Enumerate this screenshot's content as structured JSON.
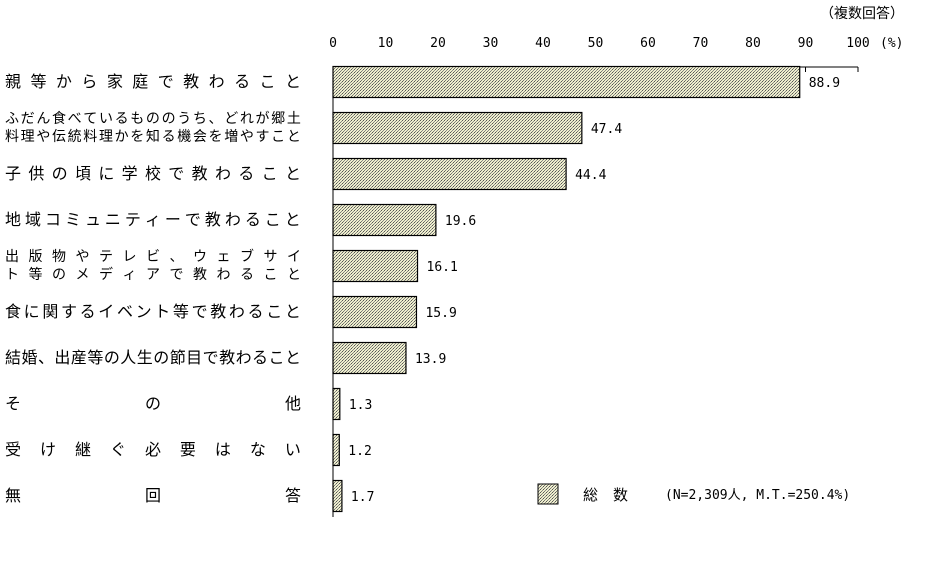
{
  "chart_data": {
    "type": "bar",
    "orientation": "horizontal",
    "note": "（複数回答）",
    "unit": "(%)",
    "xlim": [
      0,
      100
    ],
    "ticks": [
      "0",
      "10",
      "20",
      "30",
      "40",
      "50",
      "60",
      "70",
      "80",
      "90",
      "100"
    ],
    "categories": [
      [
        "親等から家庭で教わること"
      ],
      [
        "ふだん食べているもののうち、どれが郷土",
        "料理や伝統料理かを知る機会を増やすこと"
      ],
      [
        "子供の頃に学校で教わること"
      ],
      [
        "地域コミュニティーで教わること"
      ],
      [
        "出版物やテレビ、ウェブサイ",
        "ト等のメディアで教わること"
      ],
      [
        "食に関するイベント等で教わること"
      ],
      [
        "結婚、出産等の人生の節目で教わること"
      ],
      [
        "その他"
      ],
      [
        "受け継ぐ必要はない"
      ],
      [
        "無回答"
      ]
    ],
    "series": [
      {
        "name": "総　数",
        "values": [
          88.9,
          47.4,
          44.4,
          19.6,
          16.1,
          15.9,
          13.9,
          1.3,
          1.2,
          1.7
        ]
      }
    ],
    "value_labels": [
      "88.9",
      "47.4",
      "44.4",
      "19.6",
      "16.1",
      "15.9",
      "13.9",
      "1.3",
      "1.2",
      "1.7"
    ],
    "legend": {
      "label": "総　数",
      "sample": "(N=2,309人, M.T.=250.4%)",
      "placement": "bottom-right"
    },
    "grid": false,
    "colors": {
      "fill": "#eeeecc",
      "dots": "#555555",
      "stroke": "#000000"
    }
  }
}
